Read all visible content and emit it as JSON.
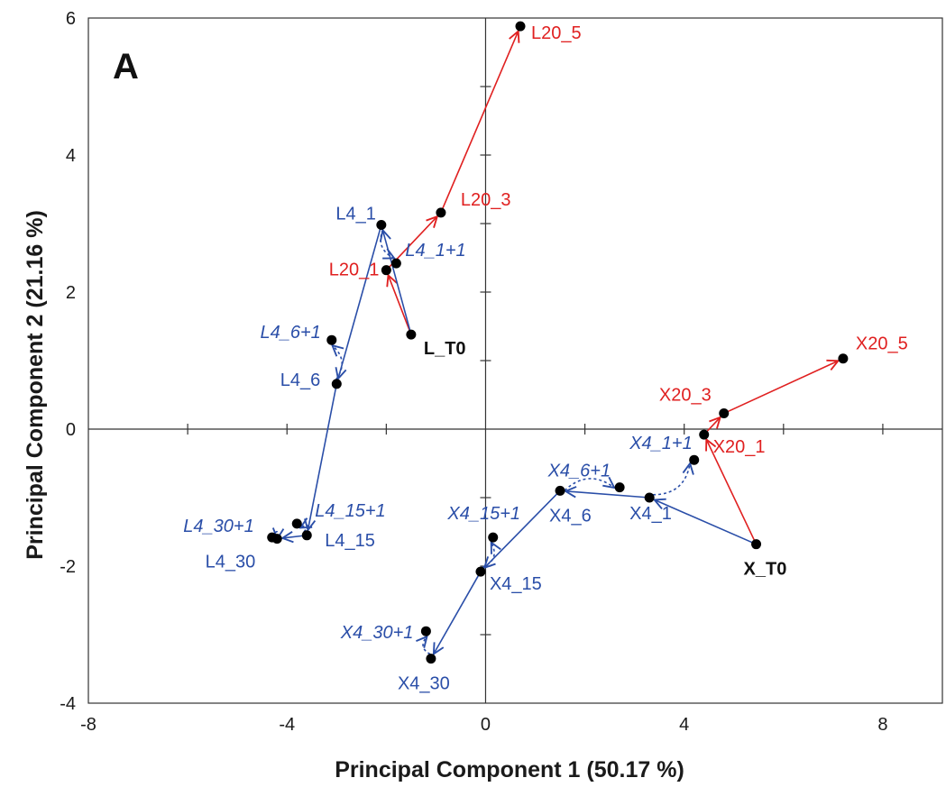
{
  "panel_label": "A",
  "colors": {
    "red": "#e02020",
    "blue": "#2a4ea8",
    "black": "#111111"
  },
  "chart_data": {
    "type": "scatter",
    "xlabel": "Principal Component 1 (50.17 %)",
    "ylabel": "Principal Component 2 (21.16 %)",
    "xlim": [
      -8,
      9.2
    ],
    "ylim": [
      -4,
      6
    ],
    "xticks": [
      -8,
      -4,
      0,
      4,
      8
    ],
    "yticks": [
      -4,
      -2,
      0,
      2,
      4,
      6
    ],
    "xtick_labels": [
      "-8",
      "-4",
      "0",
      "4",
      "8"
    ],
    "ytick_labels": [
      "-4",
      "-2",
      "0",
      "2",
      "4",
      "6"
    ],
    "grid": false,
    "points": [
      {
        "name": "L_T0",
        "x": -1.5,
        "y": 1.38,
        "color": "black",
        "bold": true,
        "italic": false
      },
      {
        "name": "L20_1",
        "x": -2.0,
        "y": 2.32,
        "color": "red",
        "bold": false,
        "italic": false
      },
      {
        "name": "L20_3",
        "x": -0.9,
        "y": 3.16,
        "color": "red",
        "bold": false,
        "italic": false
      },
      {
        "name": "L20_5",
        "x": 0.7,
        "y": 5.88,
        "color": "red",
        "bold": false,
        "italic": false
      },
      {
        "name": "L4_1",
        "x": -2.1,
        "y": 2.98,
        "color": "blue",
        "bold": false,
        "italic": false
      },
      {
        "name": "L4_1+1",
        "x": -1.8,
        "y": 2.42,
        "color": "blue",
        "bold": false,
        "italic": true
      },
      {
        "name": "L4_6",
        "x": -3.0,
        "y": 0.66,
        "color": "blue",
        "bold": false,
        "italic": false
      },
      {
        "name": "L4_6+1",
        "x": -3.1,
        "y": 1.3,
        "color": "blue",
        "bold": false,
        "italic": true
      },
      {
        "name": "L4_15",
        "x": -3.6,
        "y": -1.55,
        "color": "blue",
        "bold": false,
        "italic": false
      },
      {
        "name": "L4_15+1",
        "x": -3.8,
        "y": -1.38,
        "color": "blue",
        "bold": false,
        "italic": true
      },
      {
        "name": "L4_30",
        "x": -4.2,
        "y": -1.6,
        "color": "blue",
        "bold": false,
        "italic": false
      },
      {
        "name": "L4_30+1",
        "x": -4.3,
        "y": -1.58,
        "color": "blue",
        "bold": false,
        "italic": true
      },
      {
        "name": "X_T0",
        "x": 5.45,
        "y": -1.68,
        "color": "black",
        "bold": true,
        "italic": false
      },
      {
        "name": "X20_1",
        "x": 4.4,
        "y": -0.08,
        "color": "red",
        "bold": false,
        "italic": false
      },
      {
        "name": "X20_3",
        "x": 4.8,
        "y": 0.23,
        "color": "red",
        "bold": false,
        "italic": false
      },
      {
        "name": "X20_5",
        "x": 7.2,
        "y": 1.03,
        "color": "red",
        "bold": false,
        "italic": false
      },
      {
        "name": "X4_1",
        "x": 3.3,
        "y": -1.0,
        "color": "blue",
        "bold": false,
        "italic": false
      },
      {
        "name": "X4_1+1",
        "x": 4.2,
        "y": -0.45,
        "color": "blue",
        "bold": false,
        "italic": true
      },
      {
        "name": "X4_6",
        "x": 1.5,
        "y": -0.9,
        "color": "blue",
        "bold": false,
        "italic": false
      },
      {
        "name": "X4_6+1",
        "x": 2.7,
        "y": -0.85,
        "color": "blue",
        "bold": false,
        "italic": true
      },
      {
        "name": "X4_15",
        "x": -0.1,
        "y": -2.08,
        "color": "blue",
        "bold": false,
        "italic": false
      },
      {
        "name": "X4_15+1",
        "x": 0.15,
        "y": -1.58,
        "color": "blue",
        "bold": false,
        "italic": true
      },
      {
        "name": "X4_30",
        "x": -1.1,
        "y": -3.35,
        "color": "blue",
        "bold": false,
        "italic": false
      },
      {
        "name": "X4_30+1",
        "x": -1.2,
        "y": -2.95,
        "color": "blue",
        "bold": false,
        "italic": true
      }
    ],
    "arrows": [
      {
        "from": "L_T0",
        "to": "L20_1",
        "color": "red",
        "dashed": false,
        "curve": 0
      },
      {
        "from": "L20_1",
        "to": "L20_3",
        "color": "red",
        "dashed": false,
        "curve": 0
      },
      {
        "from": "L20_3",
        "to": "L20_5",
        "color": "red",
        "dashed": false,
        "curve": 0
      },
      {
        "from": "L_T0",
        "to": "L4_1",
        "color": "blue",
        "dashed": false,
        "curve": 0
      },
      {
        "from": "L4_1",
        "to": "L4_6",
        "color": "blue",
        "dashed": false,
        "curve": 0
      },
      {
        "from": "L4_6",
        "to": "L4_15",
        "color": "blue",
        "dashed": false,
        "curve": 0
      },
      {
        "from": "L4_15",
        "to": "L4_30",
        "color": "blue",
        "dashed": false,
        "curve": 0
      },
      {
        "from": "L4_1",
        "to": "L4_1+1",
        "color": "blue",
        "dashed": true,
        "curve": 0.35
      },
      {
        "from": "L4_6",
        "to": "L4_6+1",
        "color": "blue",
        "dashed": true,
        "curve": 0.35
      },
      {
        "from": "L4_15",
        "to": "L4_15+1",
        "color": "blue",
        "dashed": true,
        "curve": 0.5
      },
      {
        "from": "L4_30",
        "to": "L4_30+1",
        "color": "blue",
        "dashed": true,
        "curve": 0.5
      },
      {
        "from": "X_T0",
        "to": "X20_1",
        "color": "red",
        "dashed": false,
        "curve": 0
      },
      {
        "from": "X20_1",
        "to": "X20_3",
        "color": "red",
        "dashed": false,
        "curve": 0
      },
      {
        "from": "X20_3",
        "to": "X20_5",
        "color": "red",
        "dashed": false,
        "curve": 0
      },
      {
        "from": "X_T0",
        "to": "X4_1",
        "color": "blue",
        "dashed": false,
        "curve": 0
      },
      {
        "from": "X4_1",
        "to": "X4_6",
        "color": "blue",
        "dashed": false,
        "curve": 0
      },
      {
        "from": "X4_6",
        "to": "X4_15",
        "color": "blue",
        "dashed": false,
        "curve": 0
      },
      {
        "from": "X4_15",
        "to": "X4_30",
        "color": "blue",
        "dashed": false,
        "curve": 0
      },
      {
        "from": "X4_1",
        "to": "X4_1+1",
        "color": "blue",
        "dashed": true,
        "curve": 0.35
      },
      {
        "from": "X4_6",
        "to": "X4_6+1",
        "color": "blue",
        "dashed": true,
        "curve": -0.35
      },
      {
        "from": "X4_15",
        "to": "X4_15+1",
        "color": "blue",
        "dashed": true,
        "curve": 0.4
      },
      {
        "from": "X4_30",
        "to": "X4_30+1",
        "color": "blue",
        "dashed": true,
        "curve": -0.4
      }
    ]
  }
}
